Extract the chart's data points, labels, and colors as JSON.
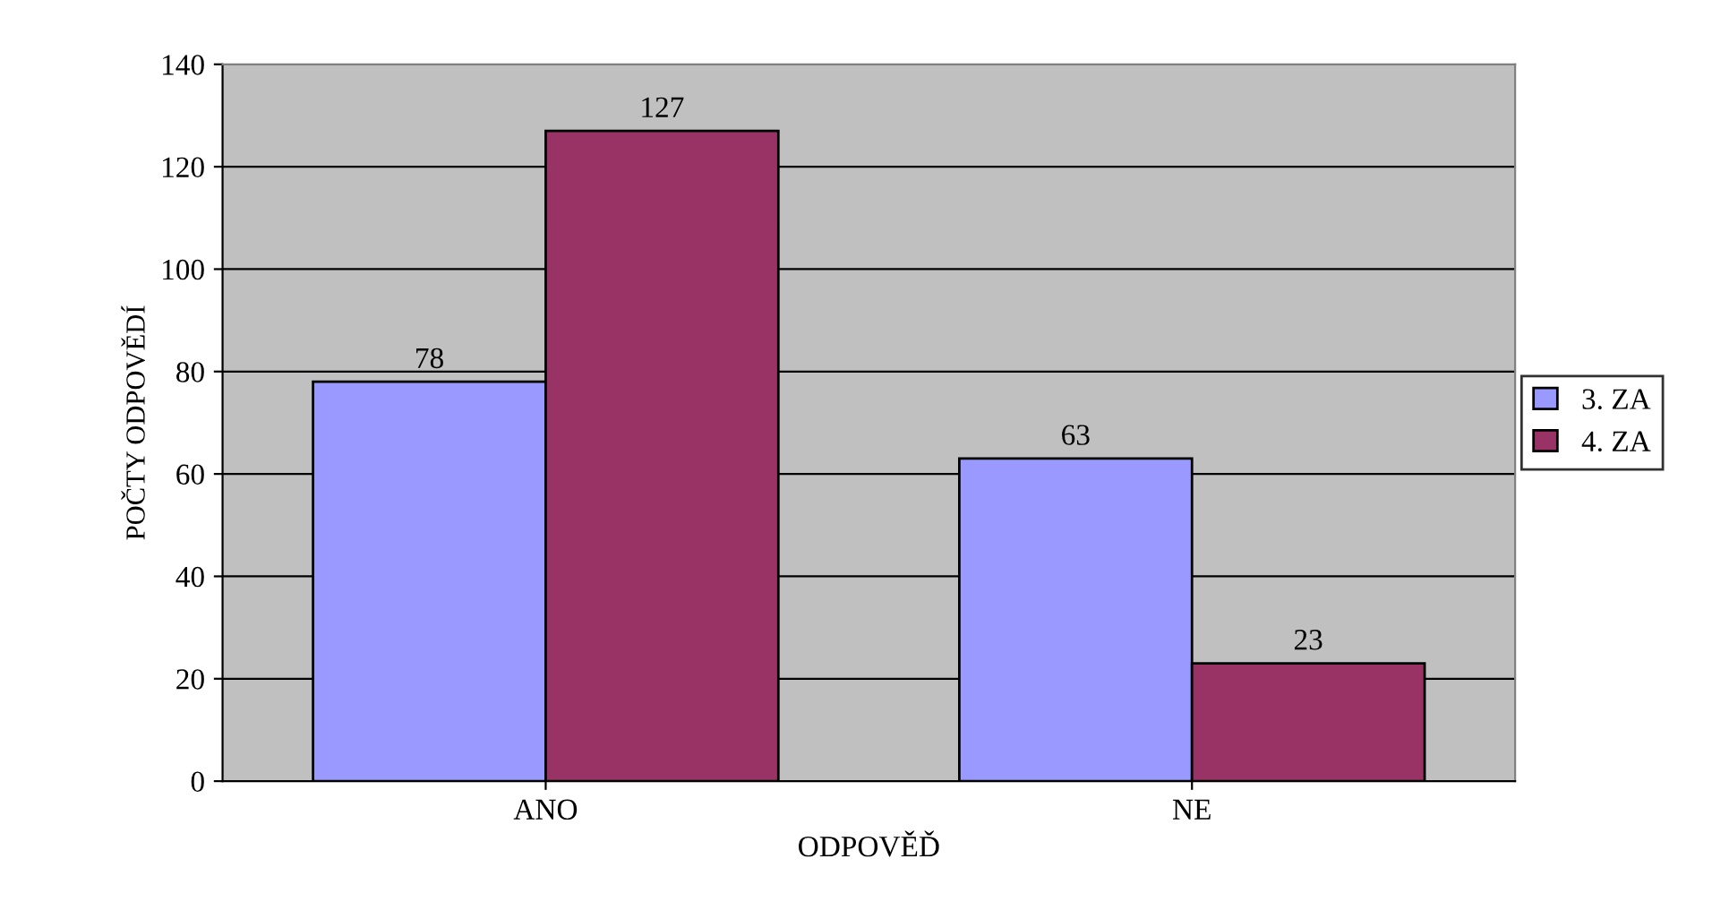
{
  "chart_data": {
    "type": "bar",
    "xlabel": "ODPOVĚĎ",
    "ylabel": "POČTY ODPOVĚDÍ",
    "categories": [
      "ANO",
      "NE"
    ],
    "series": [
      {
        "name": "3. ZA",
        "color": "#9999ff",
        "values": [
          78,
          63
        ]
      },
      {
        "name": "4. ZA",
        "color": "#993366",
        "values": [
          127,
          23
        ]
      }
    ],
    "ylim": [
      0,
      140
    ],
    "yticks": [
      0,
      20,
      40,
      60,
      80,
      100,
      120,
      140
    ],
    "grid": "y",
    "legend": "right",
    "data_labels": true
  }
}
